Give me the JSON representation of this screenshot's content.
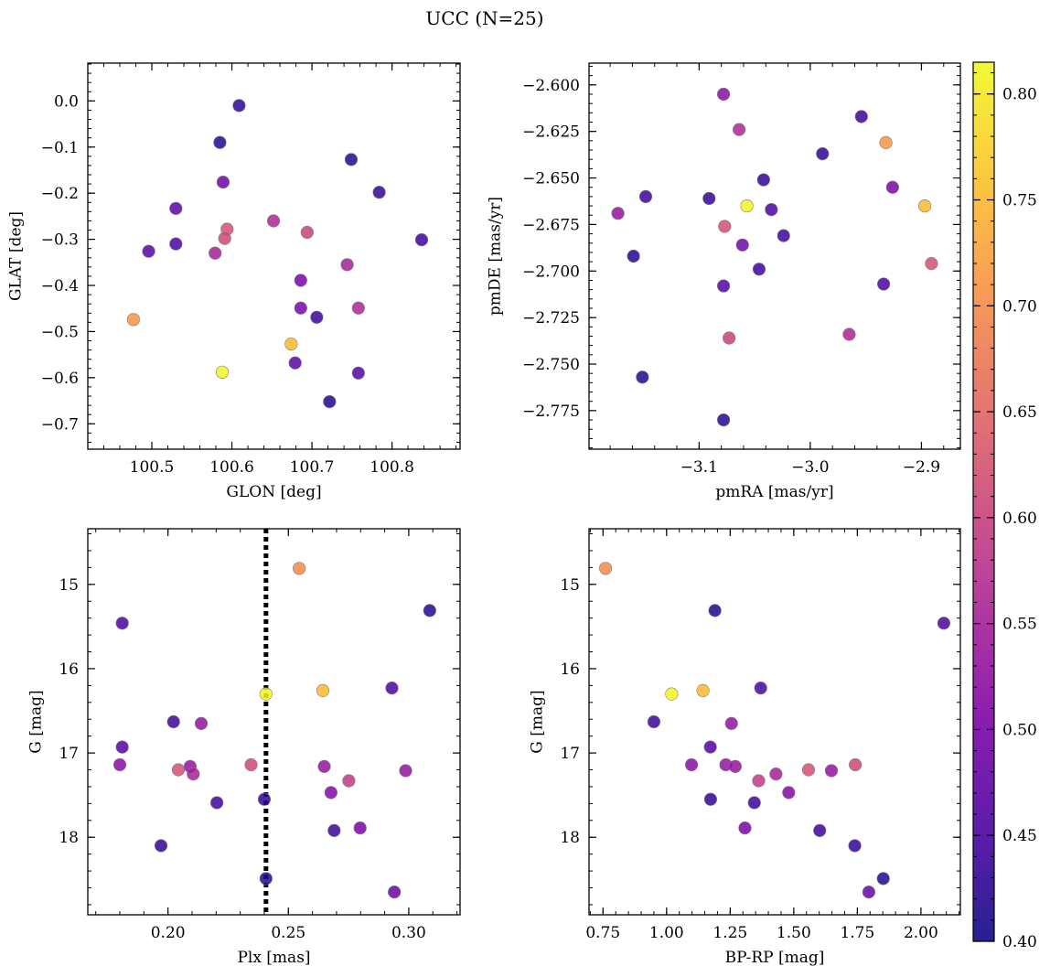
{
  "title": "UCC (N=25)",
  "colorbar": {
    "ticks": [
      "0.40",
      "0.45",
      "0.50",
      "0.55",
      "0.60",
      "0.65",
      "0.70",
      "0.75",
      "0.80"
    ],
    "min": 0.4,
    "max": 0.815,
    "colormap": "plasma"
  },
  "chart_data": [
    {
      "type": "scatter",
      "id": "glon-glat",
      "xlabel": "GLON [deg]",
      "ylabel": "GLAT [deg]",
      "xlim": [
        100.42,
        100.885
      ],
      "ylim": [
        -0.755,
        0.082
      ],
      "yinvert": false,
      "xticks": [
        100.5,
        100.6,
        100.7,
        100.8
      ],
      "xticklabels": [
        "100.5",
        "100.6",
        "100.7",
        "100.8"
      ],
      "yticks": [
        0.0,
        -0.1,
        -0.2,
        -0.3,
        -0.4,
        -0.5,
        -0.6,
        -0.7
      ],
      "yticklabels": [
        "0.0",
        "−0.1",
        "−0.2",
        "−0.3",
        "−0.4",
        "−0.5",
        "−0.6",
        "−0.7"
      ],
      "xminor": 0.02,
      "yminor": 0.02,
      "points": [
        {
          "x": 100.609,
          "y": -0.01,
          "c": 0.43
        },
        {
          "x": 100.585,
          "y": -0.09,
          "c": 0.42
        },
        {
          "x": 100.749,
          "y": -0.127,
          "c": 0.42
        },
        {
          "x": 100.589,
          "y": -0.176,
          "c": 0.49
        },
        {
          "x": 100.784,
          "y": -0.198,
          "c": 0.43
        },
        {
          "x": 100.53,
          "y": -0.233,
          "c": 0.47
        },
        {
          "x": 100.652,
          "y": -0.26,
          "c": 0.56
        },
        {
          "x": 100.594,
          "y": -0.278,
          "c": 0.62
        },
        {
          "x": 100.694,
          "y": -0.285,
          "c": 0.6
        },
        {
          "x": 100.591,
          "y": -0.298,
          "c": 0.61
        },
        {
          "x": 100.837,
          "y": -0.301,
          "c": 0.44
        },
        {
          "x": 100.53,
          "y": -0.31,
          "c": 0.45
        },
        {
          "x": 100.496,
          "y": -0.326,
          "c": 0.46
        },
        {
          "x": 100.579,
          "y": -0.33,
          "c": 0.55
        },
        {
          "x": 100.744,
          "y": -0.355,
          "c": 0.55
        },
        {
          "x": 100.686,
          "y": -0.389,
          "c": 0.5
        },
        {
          "x": 100.686,
          "y": -0.449,
          "c": 0.5
        },
        {
          "x": 100.758,
          "y": -0.449,
          "c": 0.56
        },
        {
          "x": 100.706,
          "y": -0.469,
          "c": 0.44
        },
        {
          "x": 100.477,
          "y": -0.474,
          "c": 0.71
        },
        {
          "x": 100.674,
          "y": -0.527,
          "c": 0.75
        },
        {
          "x": 100.679,
          "y": -0.568,
          "c": 0.47
        },
        {
          "x": 100.588,
          "y": -0.588,
          "c": 0.81
        },
        {
          "x": 100.758,
          "y": -0.59,
          "c": 0.46
        },
        {
          "x": 100.722,
          "y": -0.652,
          "c": 0.42
        }
      ]
    },
    {
      "type": "scatter",
      "id": "pmra-pmde",
      "xlabel": "pmRA [mas/yr]",
      "ylabel": "pmDE [mas/yr]",
      "xlim": [
        -3.199,
        -2.865
      ],
      "ylim": [
        -2.7957,
        -2.5883
      ],
      "yinvert": false,
      "xticks": [
        -3.1,
        -3.0,
        -2.9
      ],
      "xticklabels": [
        "−3.1",
        "−3.0",
        "−2.9"
      ],
      "yticks": [
        -2.6,
        -2.625,
        -2.65,
        -2.675,
        -2.7,
        -2.725,
        -2.75,
        -2.775
      ],
      "yticklabels": [
        "−2.600",
        "−2.625",
        "−2.650",
        "−2.675",
        "−2.700",
        "−2.725",
        "−2.750",
        "−2.775"
      ],
      "xminor": 0.02,
      "yminor": 0.005,
      "points": [
        {
          "x": -3.078,
          "y": -2.605,
          "c": 0.52
        },
        {
          "x": -2.954,
          "y": -2.617,
          "c": 0.44
        },
        {
          "x": -3.064,
          "y": -2.624,
          "c": 0.56
        },
        {
          "x": -2.932,
          "y": -2.631,
          "c": 0.71
        },
        {
          "x": -2.989,
          "y": -2.637,
          "c": 0.43
        },
        {
          "x": -3.042,
          "y": -2.651,
          "c": 0.43
        },
        {
          "x": -2.926,
          "y": -2.655,
          "c": 0.5
        },
        {
          "x": -3.148,
          "y": -2.66,
          "c": 0.44
        },
        {
          "x": -3.091,
          "y": -2.661,
          "c": 0.43
        },
        {
          "x": -3.057,
          "y": -2.665,
          "c": 0.81
        },
        {
          "x": -2.897,
          "y": -2.665,
          "c": 0.75
        },
        {
          "x": -3.035,
          "y": -2.667,
          "c": 0.45
        },
        {
          "x": -3.173,
          "y": -2.669,
          "c": 0.53
        },
        {
          "x": -3.077,
          "y": -2.676,
          "c": 0.62
        },
        {
          "x": -3.024,
          "y": -2.681,
          "c": 0.44
        },
        {
          "x": -3.061,
          "y": -2.686,
          "c": 0.49
        },
        {
          "x": -3.159,
          "y": -2.692,
          "c": 0.42
        },
        {
          "x": -2.891,
          "y": -2.696,
          "c": 0.62
        },
        {
          "x": -3.046,
          "y": -2.699,
          "c": 0.44
        },
        {
          "x": -3.078,
          "y": -2.708,
          "c": 0.46
        },
        {
          "x": -2.934,
          "y": -2.707,
          "c": 0.45
        },
        {
          "x": -2.965,
          "y": -2.734,
          "c": 0.56
        },
        {
          "x": -3.073,
          "y": -2.736,
          "c": 0.6
        },
        {
          "x": -3.151,
          "y": -2.757,
          "c": 0.42
        },
        {
          "x": -3.078,
          "y": -2.78,
          "c": 0.42
        }
      ]
    },
    {
      "type": "scatter",
      "id": "plx-g",
      "xlabel": "Plx [mas]",
      "ylabel": "G [mag]",
      "xlim": [
        0.1667,
        0.3213
      ],
      "ylim": [
        14.34,
        18.92
      ],
      "yinvert": true,
      "xticks": [
        0.2,
        0.25,
        0.3
      ],
      "xticklabels": [
        "0.20",
        "0.25",
        "0.30"
      ],
      "yticks": [
        15,
        16,
        17,
        18
      ],
      "yticklabels": [
        "15",
        "16",
        "17",
        "18"
      ],
      "xminor": 0.01,
      "yminor": 0.2,
      "vline": {
        "x": 0.2407,
        "style": "dotted"
      },
      "points": [
        {
          "x": 0.2545,
          "y": 14.81,
          "c": 0.7
        },
        {
          "x": 0.3087,
          "y": 15.31,
          "c": 0.42
        },
        {
          "x": 0.181,
          "y": 15.46,
          "c": 0.45
        },
        {
          "x": 0.293,
          "y": 16.23,
          "c": 0.45
        },
        {
          "x": 0.2407,
          "y": 16.3,
          "c": 0.81
        },
        {
          "x": 0.2643,
          "y": 16.26,
          "c": 0.75
        },
        {
          "x": 0.2023,
          "y": 16.63,
          "c": 0.44
        },
        {
          "x": 0.2138,
          "y": 16.65,
          "c": 0.53
        },
        {
          "x": 0.181,
          "y": 16.93,
          "c": 0.46
        },
        {
          "x": 0.18,
          "y": 17.14,
          "c": 0.52
        },
        {
          "x": 0.2345,
          "y": 17.14,
          "c": 0.61
        },
        {
          "x": 0.2092,
          "y": 17.16,
          "c": 0.53
        },
        {
          "x": 0.2649,
          "y": 17.16,
          "c": 0.53
        },
        {
          "x": 0.2043,
          "y": 17.2,
          "c": 0.62
        },
        {
          "x": 0.2987,
          "y": 17.21,
          "c": 0.53
        },
        {
          "x": 0.2105,
          "y": 17.25,
          "c": 0.55
        },
        {
          "x": 0.2751,
          "y": 17.33,
          "c": 0.59
        },
        {
          "x": 0.2677,
          "y": 17.47,
          "c": 0.51
        },
        {
          "x": 0.24,
          "y": 17.55,
          "c": 0.43
        },
        {
          "x": 0.2203,
          "y": 17.59,
          "c": 0.44
        },
        {
          "x": 0.2798,
          "y": 17.89,
          "c": 0.5
        },
        {
          "x": 0.269,
          "y": 17.92,
          "c": 0.44
        },
        {
          "x": 0.1971,
          "y": 18.1,
          "c": 0.43
        },
        {
          "x": 0.2407,
          "y": 18.49,
          "c": 0.42
        },
        {
          "x": 0.294,
          "y": 18.65,
          "c": 0.48
        }
      ]
    },
    {
      "type": "scatter",
      "id": "bprp-g",
      "xlabel": "BP-RP [mag]",
      "ylabel": "G [mag]",
      "xlim": [
        0.695,
        2.155
      ],
      "ylim": [
        14.34,
        18.92
      ],
      "yinvert": true,
      "xticks": [
        0.75,
        1.0,
        1.25,
        1.5,
        1.75,
        2.0
      ],
      "xticklabels": [
        "0.75",
        "1.00",
        "1.25",
        "1.50",
        "1.75",
        "2.00"
      ],
      "yticks": [
        15,
        16,
        17,
        18
      ],
      "yticklabels": [
        "15",
        "16",
        "17",
        "18"
      ],
      "xminor": 0.05,
      "yminor": 0.2,
      "points": [
        {
          "x": 0.76,
          "y": 14.81,
          "c": 0.7
        },
        {
          "x": 1.19,
          "y": 15.31,
          "c": 0.42
        },
        {
          "x": 2.09,
          "y": 15.46,
          "c": 0.45
        },
        {
          "x": 1.37,
          "y": 16.23,
          "c": 0.45
        },
        {
          "x": 1.02,
          "y": 16.3,
          "c": 0.81
        },
        {
          "x": 1.143,
          "y": 16.26,
          "c": 0.75
        },
        {
          "x": 0.95,
          "y": 16.63,
          "c": 0.44
        },
        {
          "x": 1.255,
          "y": 16.65,
          "c": 0.53
        },
        {
          "x": 1.172,
          "y": 16.93,
          "c": 0.46
        },
        {
          "x": 1.098,
          "y": 17.14,
          "c": 0.52
        },
        {
          "x": 1.233,
          "y": 17.14,
          "c": 0.53
        },
        {
          "x": 1.27,
          "y": 17.16,
          "c": 0.53
        },
        {
          "x": 1.742,
          "y": 17.14,
          "c": 0.61
        },
        {
          "x": 1.558,
          "y": 17.2,
          "c": 0.62
        },
        {
          "x": 1.648,
          "y": 17.21,
          "c": 0.53
        },
        {
          "x": 1.43,
          "y": 17.25,
          "c": 0.55
        },
        {
          "x": 1.362,
          "y": 17.33,
          "c": 0.59
        },
        {
          "x": 1.48,
          "y": 17.47,
          "c": 0.51
        },
        {
          "x": 1.173,
          "y": 17.55,
          "c": 0.43
        },
        {
          "x": 1.345,
          "y": 17.59,
          "c": 0.44
        },
        {
          "x": 1.308,
          "y": 17.89,
          "c": 0.5
        },
        {
          "x": 1.602,
          "y": 17.92,
          "c": 0.44
        },
        {
          "x": 1.74,
          "y": 18.1,
          "c": 0.43
        },
        {
          "x": 1.852,
          "y": 18.49,
          "c": 0.42
        },
        {
          "x": 1.795,
          "y": 18.65,
          "c": 0.48
        }
      ]
    }
  ]
}
